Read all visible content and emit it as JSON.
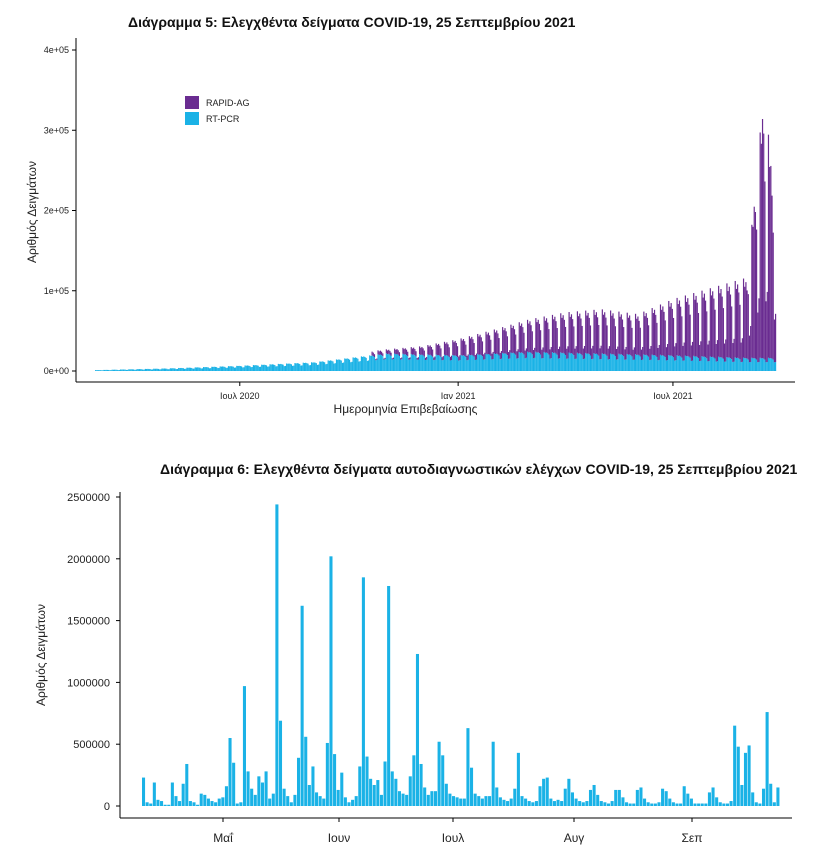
{
  "chart_data": [
    {
      "type": "bar",
      "title": "Διάγραμμα 5: Ελεγχθέντα δείγματα COVID-19, 25 Σεπτεμβρίου 2021",
      "xlabel": "Ημερομηνία Επιβεβαίωσης",
      "ylabel": "Αριθμός Δειγμάτων",
      "x_range": [
        "2020-03-01",
        "2021-09-25"
      ],
      "ylim": [
        0,
        400000
      ],
      "yticks": [
        0,
        100000,
        200000,
        300000,
        400000
      ],
      "ytick_labels": [
        "0e+00",
        "1e+05",
        "2e+05",
        "3e+05",
        "4e+05"
      ],
      "xticks": [
        "2020-07-01",
        "2021-01-01",
        "2021-07-01"
      ],
      "xtick_labels": [
        "Ιουλ 2020",
        "Ιαν 2021",
        "Ιουλ 2021"
      ],
      "stacked": true,
      "legend_position": "top-left",
      "series": [
        {
          "name": "RAPID-AG",
          "color": "#6a2c91",
          "note_values": "weekly periodic pattern; monthly anchor values for estimated weekday peaks",
          "anchors": [
            [
              "2020-11-01",
              5000
            ],
            [
              "2020-12-01",
              10000
            ],
            [
              "2021-01-01",
              20000
            ],
            [
              "2021-02-01",
              30000
            ],
            [
              "2021-03-01",
              40000
            ],
            [
              "2021-04-01",
              50000
            ],
            [
              "2021-05-01",
              55000
            ],
            [
              "2021-06-01",
              50000
            ],
            [
              "2021-07-01",
              70000
            ],
            [
              "2021-08-01",
              85000
            ],
            [
              "2021-09-01",
              100000
            ],
            [
              "2021-09-15",
              330000
            ],
            [
              "2021-09-25",
              200000
            ]
          ]
        },
        {
          "name": "RT-PCR",
          "color": "#1ab2e6",
          "anchors": [
            [
              "2020-03-01",
              1000
            ],
            [
              "2020-05-01",
              3000
            ],
            [
              "2020-07-01",
              6000
            ],
            [
              "2020-09-01",
              10000
            ],
            [
              "2020-11-01",
              20000
            ],
            [
              "2021-01-01",
              18000
            ],
            [
              "2021-03-01",
              22000
            ],
            [
              "2021-05-01",
              20000
            ],
            [
              "2021-07-01",
              18000
            ],
            [
              "2021-09-01",
              15000
            ],
            [
              "2021-09-25",
              15000
            ]
          ]
        }
      ]
    },
    {
      "type": "bar",
      "title": "Διάγραμμα 6: Ελεγχθέντα δείγματα αυτοδιαγνωστικών ελέγχων COVID-19, 25 Σεπτεμβρίου 2021",
      "xlabel": "",
      "ylabel": "Αριθμός Δειγμάτων",
      "ylim": [
        0,
        2500000
      ],
      "yticks": [
        0,
        500000,
        1000000,
        1500000,
        2000000,
        2500000
      ],
      "ytick_labels": [
        "0",
        "500000",
        "1000000",
        "1500000",
        "2000000",
        "2500000"
      ],
      "xtick_labels": [
        "Μαΐ",
        "Ιουν",
        "Ιουλ",
        "Αυγ",
        "Σεπ"
      ],
      "x_range": [
        "2021-04-12",
        "2021-09-25"
      ],
      "color": "#1ab2e6",
      "series": [
        {
          "name": "",
          "values": [
            230000,
            30000,
            20000,
            190000,
            50000,
            40000,
            10000,
            10000,
            190000,
            80000,
            40000,
            180000,
            340000,
            40000,
            30000,
            10000,
            100000,
            90000,
            60000,
            40000,
            30000,
            60000,
            70000,
            160000,
            550000,
            350000,
            20000,
            30000,
            970000,
            280000,
            140000,
            90000,
            240000,
            190000,
            280000,
            60000,
            100000,
            2440000,
            690000,
            140000,
            80000,
            30000,
            90000,
            390000,
            1620000,
            560000,
            170000,
            320000,
            110000,
            80000,
            60000,
            510000,
            2020000,
            420000,
            130000,
            270000,
            70000,
            30000,
            50000,
            80000,
            320000,
            1850000,
            400000,
            220000,
            170000,
            210000,
            90000,
            360000,
            1780000,
            280000,
            220000,
            120000,
            100000,
            90000,
            240000,
            410000,
            1230000,
            340000,
            150000,
            90000,
            120000,
            120000,
            520000,
            410000,
            180000,
            100000,
            80000,
            70000,
            60000,
            60000,
            630000,
            310000,
            100000,
            80000,
            60000,
            80000,
            80000,
            520000,
            150000,
            70000,
            50000,
            40000,
            60000,
            140000,
            430000,
            80000,
            60000,
            40000,
            30000,
            40000,
            160000,
            220000,
            230000,
            60000,
            40000,
            50000,
            40000,
            140000,
            220000,
            110000,
            60000,
            40000,
            30000,
            40000,
            130000,
            170000,
            90000,
            40000,
            30000,
            20000,
            40000,
            130000,
            130000,
            70000,
            30000,
            20000,
            20000,
            130000,
            150000,
            60000,
            30000,
            20000,
            20000,
            30000,
            140000,
            120000,
            60000,
            30000,
            20000,
            20000,
            160000,
            100000,
            60000,
            20000,
            20000,
            20000,
            20000,
            110000,
            150000,
            70000,
            30000,
            20000,
            20000,
            40000,
            650000,
            480000,
            170000,
            430000,
            490000,
            110000,
            30000,
            20000,
            140000,
            760000,
            180000,
            30000,
            150000
          ]
        }
      ]
    }
  ]
}
